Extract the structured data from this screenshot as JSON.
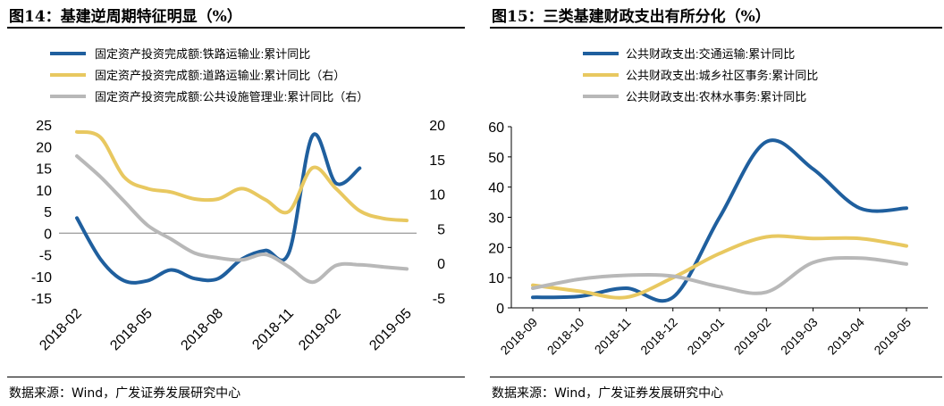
{
  "left": {
    "title": "图14：基建逆周期特征明显（%）",
    "source": "数据来源：Wind，广发证券发展研究中心",
    "chart_data": {
      "type": "line",
      "x": [
        "2018-02",
        "2018-03",
        "2018-04",
        "2018-05",
        "2018-06",
        "2018-07",
        "2018-08",
        "2018-09",
        "2018-10",
        "2018-11",
        "2018-12",
        "2019-02",
        "2019-03",
        "2019-04",
        "2019-05"
      ],
      "xticks": [
        "2018-02",
        "2018-05",
        "2018-08",
        "2018-11",
        "2019-02",
        "2019-05"
      ],
      "yticks_left": [
        "25",
        "20",
        "15",
        "10",
        "5",
        "0",
        "-5",
        "-10",
        "-15"
      ],
      "yticks_right": [
        "20",
        "15",
        "10",
        "5",
        "0",
        "-5"
      ],
      "ylim_left": [
        -15,
        25
      ],
      "ylim_right": [
        -5,
        20
      ],
      "grid": false,
      "legend_position": "top",
      "series": [
        {
          "name": "固定资产投资完成额:铁路运输业:累计同比",
          "color": "#1f5f9e",
          "axis": "left",
          "values": [
            3.5,
            -6,
            -11,
            -11,
            -8.5,
            -10.5,
            -10.5,
            -6,
            -4,
            -4.5,
            22.5,
            11.5,
            15,
            null,
            null
          ]
        },
        {
          "name": "固定资产投资完成额:道路运输业:累计同比（右）",
          "color": "#e8c860",
          "axis": "right",
          "values": [
            19,
            18.2,
            12.5,
            10.8,
            10.3,
            9.3,
            9.3,
            10.8,
            9.2,
            7.5,
            13.8,
            10.8,
            7.6,
            6.5,
            6.2
          ]
        },
        {
          "name": "固定资产投资完成额:公共设施管理业:累计同比（右）",
          "color": "#b8b8b8",
          "axis": "right",
          "values": [
            15.5,
            12.5,
            9.0,
            5.5,
            3.5,
            1.5,
            0.8,
            0.5,
            1.3,
            -0.5,
            -2.7,
            -0.3,
            -0.2,
            -0.5,
            -0.8
          ]
        }
      ]
    }
  },
  "right": {
    "title": "图15：三类基建财政支出有所分化（%）",
    "source": "数据来源：Wind，广发证券发展研究中心",
    "chart_data": {
      "type": "line",
      "x": [
        "2018-09",
        "2018-10",
        "2018-11",
        "2018-12",
        "2019-01",
        "2019-02",
        "2019-03",
        "2019-04",
        "2019-05"
      ],
      "yticks": [
        "60",
        "50",
        "40",
        "30",
        "20",
        "10",
        "0"
      ],
      "ylim": [
        0,
        60
      ],
      "grid": false,
      "legend_position": "top",
      "series": [
        {
          "name": "公共财政支出:交通运输:累计同比",
          "color": "#1f5f9e",
          "values": [
            3.5,
            3.8,
            6.5,
            3.5,
            30,
            55,
            46,
            33,
            33
          ]
        },
        {
          "name": "公共财政支出:城乡社区事务:累计同比",
          "color": "#e8c860",
          "values": [
            7.5,
            5.5,
            3.5,
            10,
            18,
            23.5,
            23,
            23,
            20.5
          ]
        },
        {
          "name": "公共财政支出:农林水事务:累计同比",
          "color": "#b8b8b8",
          "values": [
            6.5,
            9.5,
            10.8,
            10.5,
            7,
            5.2,
            15,
            16.5,
            14.5
          ]
        }
      ]
    }
  }
}
